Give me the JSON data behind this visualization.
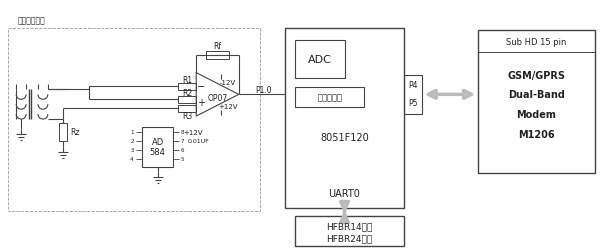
{
  "fig_width": 6.08,
  "fig_height": 2.53,
  "dpi": 100,
  "labels": {
    "sensor": "小电流互感器",
    "R1": "R1",
    "R2": "R2",
    "R3": "R3",
    "Rf": "Rf",
    "Rz": "Rz",
    "opamp": "OP07",
    "ad1": "AD",
    "ad2": "584",
    "p1": "P1.0",
    "adc": "ADC",
    "ref": "基准电压源",
    "mcu": "8051F120",
    "uart": "UART0",
    "p4": "P4",
    "p5": "P5",
    "modem_title": "Sub HD 15 pin",
    "modem_line1": "GSM/GPRS",
    "modem_line2": "Dual-Band",
    "modem_line3": "Modem",
    "modem_line4": "M1206",
    "fiber_line1": "HFBR14发送",
    "fiber_line2": "HFBR24接收",
    "neg12": "-12V",
    "pos12a": "+12V",
    "pos12b": "+12V",
    "cap": "0.01UF"
  },
  "lc": "#444444",
  "gray": "#aaaaaa"
}
